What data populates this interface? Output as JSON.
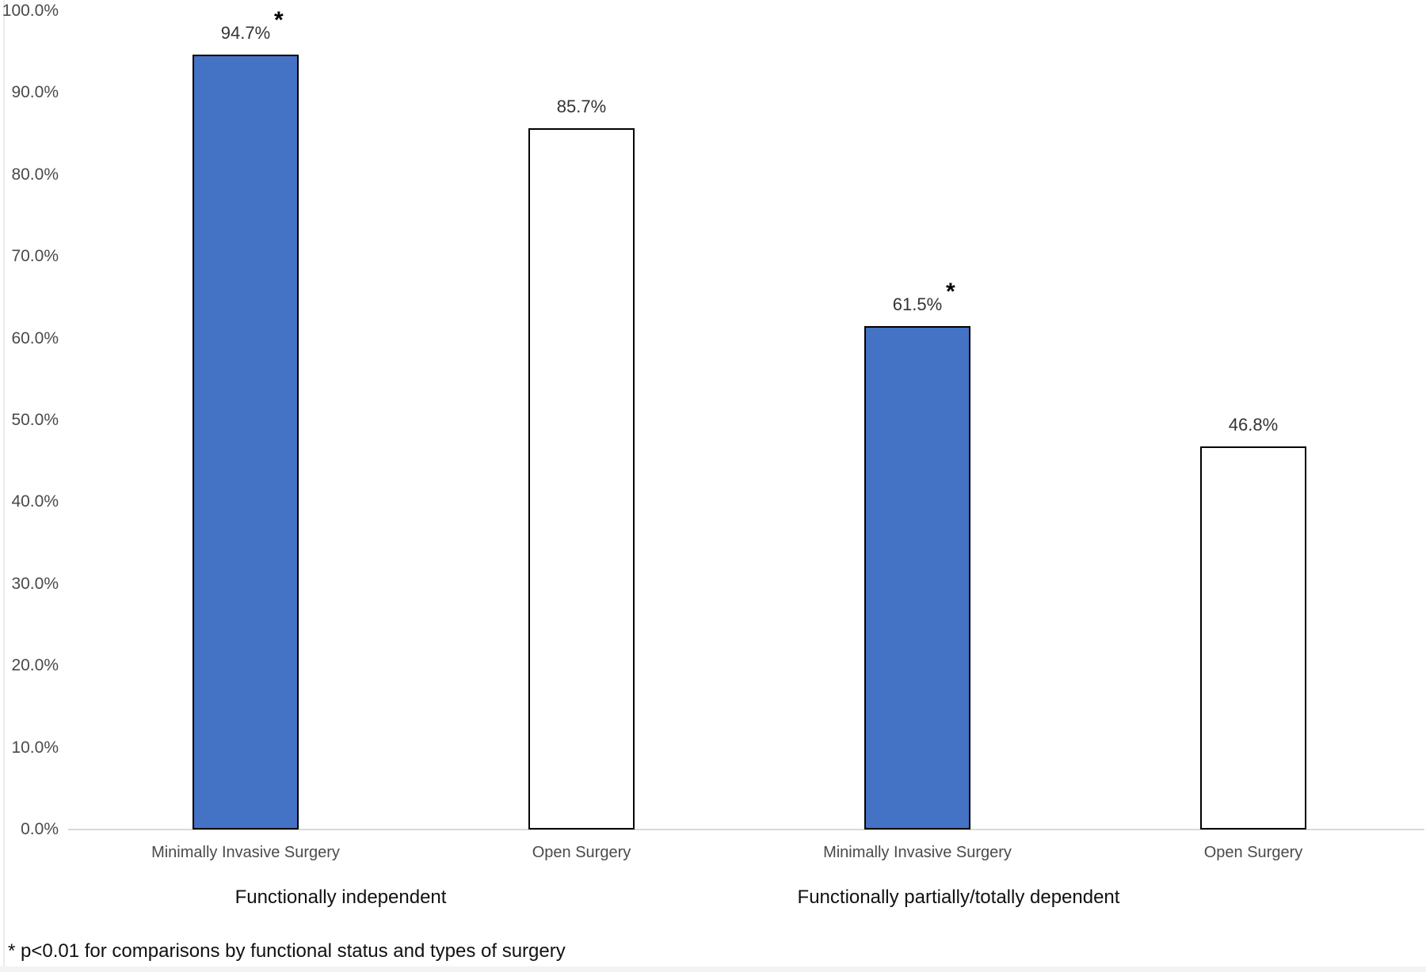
{
  "figure": {
    "colors": {
      "bar_fill_blue": "#4472C4",
      "bar_fill_white": "#ffffff",
      "bar_border": "#000000",
      "axis_line": "#d9d9d9",
      "tick_text": "#4a4a4a",
      "label_text": "#333333"
    }
  },
  "chart_data": {
    "type": "bar",
    "title": "",
    "xlabel": "",
    "ylabel": "",
    "ylim": [
      0,
      100
    ],
    "grid": "off",
    "legend": "none",
    "ytick_labels": [
      "0.0%",
      "10.0%",
      "20.0%",
      "30.0%",
      "40.0%",
      "50.0%",
      "60.0%",
      "70.0%",
      "80.0%",
      "90.0%",
      "100.0%"
    ],
    "groups": [
      {
        "label": "Functionally independent",
        "bars": [
          {
            "category": "Minimally Invasive Surgery",
            "value": 94.7,
            "value_label": "94.7%",
            "significant": true,
            "fill": "blue"
          },
          {
            "category": "Open Surgery",
            "value": 85.7,
            "value_label": "85.7%",
            "significant": false,
            "fill": "white"
          }
        ]
      },
      {
        "label": "Functionally partially/totally dependent",
        "bars": [
          {
            "category": "Minimally Invasive Surgery",
            "value": 61.5,
            "value_label": "61.5%",
            "significant": true,
            "fill": "blue"
          },
          {
            "category": "Open Surgery",
            "value": 46.8,
            "value_label": "46.8%",
            "significant": false,
            "fill": "white"
          }
        ]
      }
    ],
    "asterisk_symbol": "*",
    "footnote": "* p<0.01 for comparisons by functional status and types of surgery"
  }
}
